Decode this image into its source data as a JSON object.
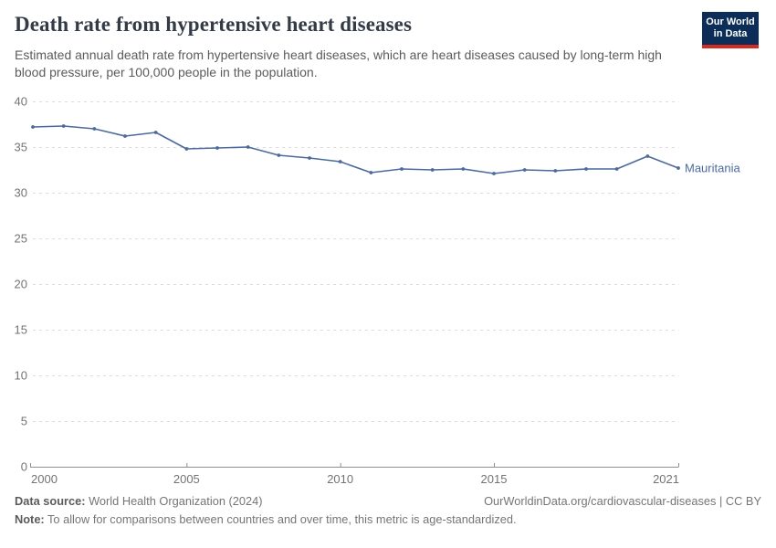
{
  "header": {
    "title": "Death rate from hypertensive heart diseases",
    "subtitle": "Estimated annual death rate from hypertensive heart diseases, which are heart diseases caused by long-term high blood pressure, per 100,000 people in the population.",
    "logo": {
      "line1": "Our World",
      "line2": "in Data"
    }
  },
  "chart_data": {
    "type": "line",
    "title": "Death rate from hypertensive heart diseases",
    "xlabel": "",
    "ylabel": "",
    "xlim": [
      2000,
      2021
    ],
    "ylim": [
      0,
      40
    ],
    "x_ticks": [
      2000,
      2005,
      2010,
      2015,
      2021
    ],
    "y_ticks": [
      0,
      5,
      10,
      15,
      20,
      25,
      30,
      35,
      40
    ],
    "grid": "horizontal-dashed",
    "legend_position": "end-of-line-label",
    "series": [
      {
        "name": "Mauritania",
        "color": "#4c6a9c",
        "x": [
          2000,
          2001,
          2002,
          2003,
          2004,
          2005,
          2006,
          2007,
          2008,
          2009,
          2010,
          2011,
          2012,
          2013,
          2014,
          2015,
          2016,
          2017,
          2018,
          2019,
          2020,
          2021
        ],
        "values": [
          37.2,
          37.3,
          37.0,
          36.2,
          36.6,
          34.8,
          34.9,
          35.0,
          34.1,
          33.8,
          33.4,
          32.2,
          32.6,
          32.5,
          32.6,
          32.1,
          32.5,
          32.4,
          32.6,
          32.6,
          34.0,
          32.7
        ]
      }
    ]
  },
  "footer": {
    "source_label": "Data source:",
    "source_text": " World Health Organization (2024)",
    "link_text": "OurWorldinData.org/cardiovascular-diseases",
    "separator": " | ",
    "license_text": "CC BY",
    "note_label": "Note:",
    "note_text": " To allow for comparisons between countries and over time, this metric is age-standardized."
  }
}
